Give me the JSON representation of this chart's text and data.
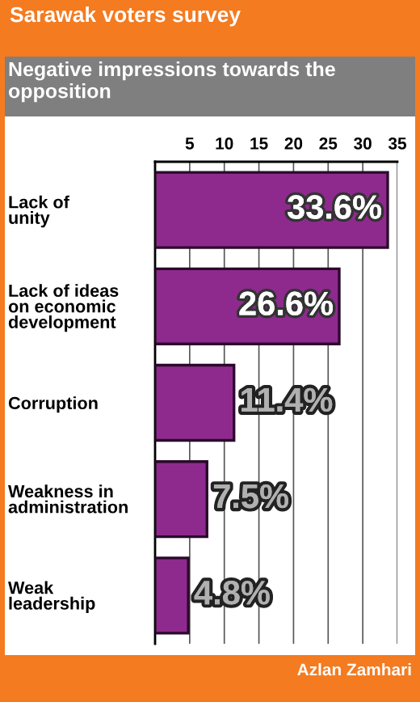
{
  "chart_data": {
    "type": "bar",
    "orientation": "horizontal",
    "title": "Sarawak voters survey",
    "subtitle": "Negative impressions towards the opposition",
    "categories": [
      "Lack of\nunity",
      "Lack of ideas\non economic\ndevelopment",
      "Corruption",
      "Weakness in\nadministration",
      "Weak\nleadership"
    ],
    "values": [
      33.6,
      26.6,
      11.4,
      7.5,
      4.8
    ],
    "value_labels": [
      "33.6%",
      "26.6%",
      "11.4%",
      "7.5%",
      "4.8%"
    ],
    "color": "#8e2a8e",
    "xlim": [
      0,
      35
    ],
    "xticks": [
      5,
      10,
      15,
      20,
      25,
      30,
      35
    ],
    "grid": "x",
    "annotations": [
      "Azlan Zamhari"
    ]
  }
}
